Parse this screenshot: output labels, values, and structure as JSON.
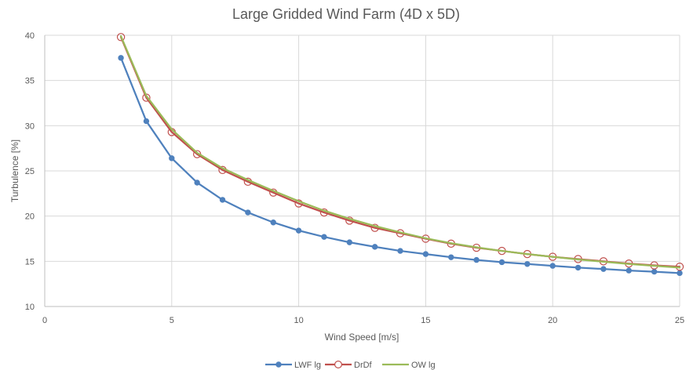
{
  "chart_data": {
    "type": "line",
    "title": "Large Gridded Wind Farm (4D x 5D)",
    "xlabel": "Wind Speed [m/s]",
    "ylabel": "Turbulence [%]",
    "xlim": [
      0,
      25
    ],
    "ylim": [
      10,
      40
    ],
    "xticks": [
      0,
      5,
      10,
      15,
      20,
      25
    ],
    "yticks": [
      10,
      15,
      20,
      25,
      30,
      35,
      40
    ],
    "grid": true,
    "legend_position": "bottom",
    "x": [
      3,
      4,
      5,
      6,
      7,
      8,
      9,
      10,
      11,
      12,
      13,
      14,
      15,
      16,
      17,
      18,
      19,
      20,
      21,
      22,
      23,
      24,
      25
    ],
    "series": [
      {
        "name": "LWF lg",
        "color": "#4f81bd",
        "marker": "filled-circle",
        "values": [
          37.5,
          30.5,
          26.4,
          23.7,
          21.8,
          20.4,
          19.3,
          18.4,
          17.7,
          17.1,
          16.6,
          16.15,
          15.8,
          15.45,
          15.15,
          14.9,
          14.7,
          14.5,
          14.3,
          14.15,
          13.98,
          13.85,
          13.7
        ]
      },
      {
        "name": "DrDf",
        "color": "#c0504d",
        "marker": "open-circle",
        "values": [
          39.8,
          33.1,
          29.3,
          26.85,
          25.1,
          23.8,
          22.6,
          21.4,
          20.4,
          19.5,
          18.7,
          18.1,
          17.5,
          16.95,
          16.5,
          16.15,
          15.8,
          15.5,
          15.25,
          15.0,
          14.75,
          14.55,
          14.4
        ]
      },
      {
        "name": "OW lg",
        "color": "#9bbb59",
        "marker": "none",
        "values": [
          39.9,
          33.3,
          29.6,
          27.0,
          25.3,
          24.0,
          22.8,
          21.65,
          20.6,
          19.7,
          18.9,
          18.2,
          17.55,
          17.0,
          16.55,
          16.15,
          15.8,
          15.5,
          15.2,
          14.95,
          14.7,
          14.5,
          14.3
        ]
      }
    ]
  }
}
